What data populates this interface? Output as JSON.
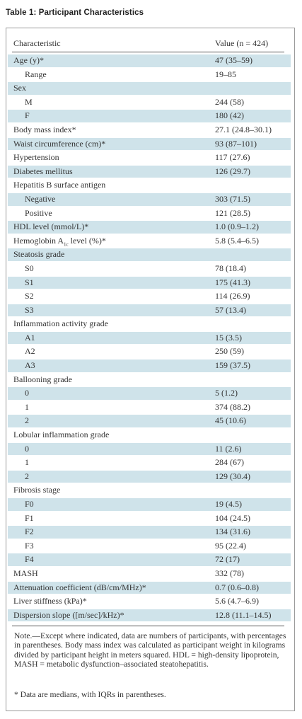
{
  "title": "Table 1: Participant Characteristics",
  "columns": {
    "characteristic": "Characteristic",
    "value": "Value (n = 424)"
  },
  "rows": [
    {
      "label": "Age (y)*",
      "value": "47 (35–59)",
      "indent": 0
    },
    {
      "label": "Range",
      "value": "19–85",
      "indent": 1
    },
    {
      "label": "Sex",
      "value": "",
      "indent": 0
    },
    {
      "label": "M",
      "value": "244 (58)",
      "indent": 1
    },
    {
      "label": "F",
      "value": "180 (42)",
      "indent": 1
    },
    {
      "label": "Body mass index*",
      "value": "27.1 (24.8–30.1)",
      "indent": 0
    },
    {
      "label": "Waist circumference (cm)*",
      "value": "93 (87–101)",
      "indent": 0
    },
    {
      "label": "Hypertension",
      "value": "117 (27.6)",
      "indent": 0
    },
    {
      "label": "Diabetes mellitus",
      "value": "126 (29.7)",
      "indent": 0
    },
    {
      "label": "Hepatitis B surface antigen",
      "value": "",
      "indent": 0
    },
    {
      "label": "Negative",
      "value": "303 (71.5)",
      "indent": 1
    },
    {
      "label": "Positive",
      "value": "121 (28.5)",
      "indent": 1
    },
    {
      "label": "HDL level (mmol/L)*",
      "value": "1.0 (0.9–1.2)",
      "indent": 0
    },
    {
      "label": "Hemoglobin A",
      "sub": "1c",
      "suffix": " level (%)*",
      "value": "5.8 (5.4–6.5)",
      "indent": 0
    },
    {
      "label": "Steatosis grade",
      "value": "",
      "indent": 0
    },
    {
      "label": "S0",
      "value": "78 (18.4)",
      "indent": 1
    },
    {
      "label": "S1",
      "value": "175 (41.3)",
      "indent": 1
    },
    {
      "label": "S2",
      "value": "114 (26.9)",
      "indent": 1
    },
    {
      "label": "S3",
      "value": "57 (13.4)",
      "indent": 1
    },
    {
      "label": "Inflammation activity grade",
      "value": "",
      "indent": 0
    },
    {
      "label": "A1",
      "value": "15 (3.5)",
      "indent": 1
    },
    {
      "label": "A2",
      "value": "250 (59)",
      "indent": 1
    },
    {
      "label": "A3",
      "value": "159 (37.5)",
      "indent": 1
    },
    {
      "label": "Ballooning grade",
      "value": "",
      "indent": 0
    },
    {
      "label": "0",
      "value": "5 (1.2)",
      "indent": 1
    },
    {
      "label": "1",
      "value": "374 (88.2)",
      "indent": 1
    },
    {
      "label": "2",
      "value": "45 (10.6)",
      "indent": 1
    },
    {
      "label": "Lobular inflammation grade",
      "value": "",
      "indent": 0
    },
    {
      "label": "0",
      "value": "11 (2.6)",
      "indent": 1
    },
    {
      "label": "1",
      "value": "284 (67)",
      "indent": 1
    },
    {
      "label": "2",
      "value": "129 (30.4)",
      "indent": 1
    },
    {
      "label": "Fibrosis stage",
      "value": "",
      "indent": 0
    },
    {
      "label": "F0",
      "value": "19 (4.5)",
      "indent": 1
    },
    {
      "label": "F1",
      "value": "104 (24.5)",
      "indent": 1
    },
    {
      "label": "F2",
      "value": "134 (31.6)",
      "indent": 1
    },
    {
      "label": "F3",
      "value": "95 (22.4)",
      "indent": 1
    },
    {
      "label": "F4",
      "value": "72 (17)",
      "indent": 1
    },
    {
      "label": "MASH",
      "value": "332 (78)",
      "indent": 0
    },
    {
      "label": "Attenuation coefficient (dB/cm/MHz)*",
      "value": "0.7 (0.6–0.8)",
      "indent": 0
    },
    {
      "label": "Liver stiffness (kPa)*",
      "value": "5.6 (4.7–6.9)",
      "indent": 0
    },
    {
      "label": "Dispersion slope ([m/sec]/kHz)*",
      "value": "12.8 (11.1–14.5)",
      "indent": 0
    }
  ],
  "note": "Note.—Except where indicated, data are numbers of participants, with percentages in parentheses. Body mass index was calculated as participant weight in kilograms divided by participant height in meters squared. HDL = high-density lipoprotein, MASH = metabolic dysfunction–associated steatohepatitis.",
  "footnote": "* Data are medians, with IQRs in parentheses.",
  "colors": {
    "band": "#cfe3ea",
    "text": "#333333",
    "rule": "#555555"
  }
}
